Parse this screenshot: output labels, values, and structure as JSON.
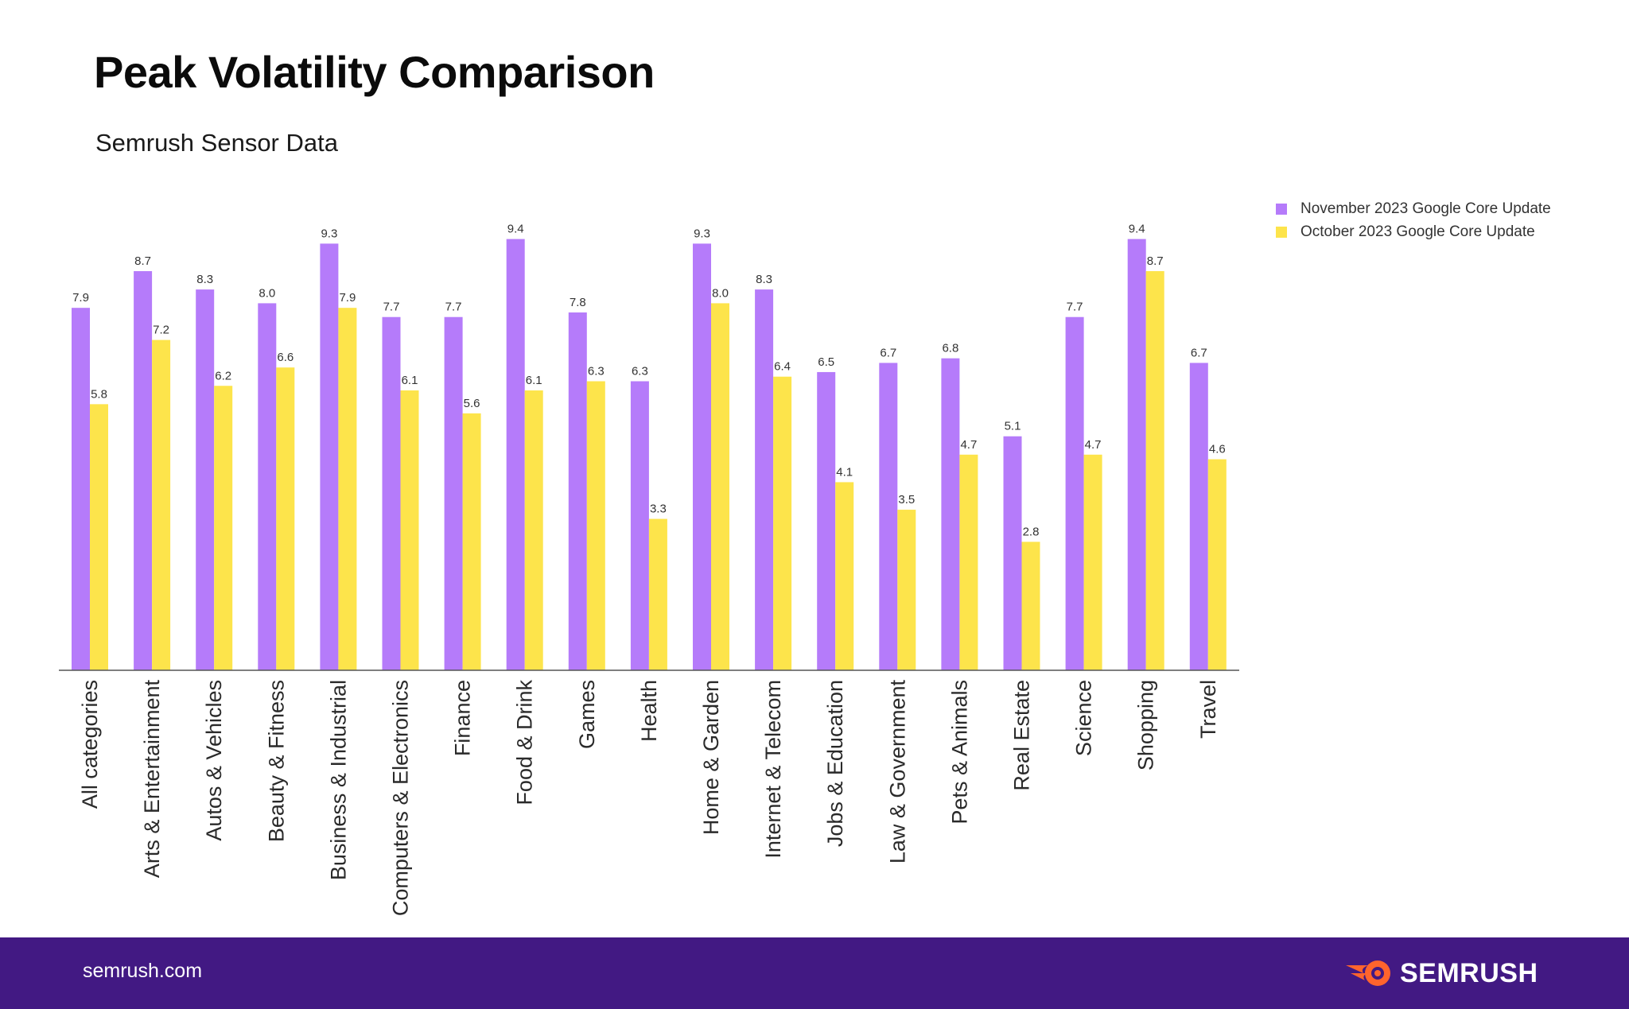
{
  "title": "Peak Volatility Comparison",
  "subtitle": "Semrush Sensor Data",
  "colors": {
    "series1": "#b57bfa",
    "series2": "#fde44b",
    "footer": "#421983",
    "brand_accent": "#ff642d"
  },
  "chart_data": {
    "type": "bar",
    "title": "Peak Volatility Comparison",
    "subtitle": "Semrush Sensor Data",
    "xlabel": "",
    "ylabel": "",
    "ylim": [
      0,
      10
    ],
    "grid": false,
    "legend_position": "top-right",
    "categories": [
      "All categories",
      "Arts & Entertainment",
      "Autos & Vehicles",
      "Beauty & Fitness",
      "Business & Industrial",
      "Computers & Electronics",
      "Finance",
      "Food & Drink",
      "Games",
      "Health",
      "Home & Garden",
      "Internet & Telecom",
      "Jobs & Education",
      "Law & Government",
      "Pets & Animals",
      "Real Estate",
      "Science",
      "Shopping",
      "Travel"
    ],
    "series": [
      {
        "name": "November 2023 Google Core Update",
        "values": [
          7.9,
          8.7,
          8.3,
          8.0,
          9.3,
          7.7,
          7.7,
          9.4,
          7.8,
          6.3,
          9.3,
          8.3,
          6.5,
          6.7,
          6.8,
          5.1,
          7.7,
          9.4,
          6.7
        ]
      },
      {
        "name": "October 2023 Google Core Update",
        "values": [
          5.8,
          7.2,
          6.2,
          6.6,
          7.9,
          6.1,
          5.6,
          6.1,
          6.3,
          3.3,
          8.0,
          6.4,
          4.1,
          3.5,
          4.7,
          2.8,
          4.7,
          8.7,
          4.6
        ]
      }
    ]
  },
  "footer": {
    "url": "semrush.com",
    "brand": "SEMRUSH",
    "brand_icon": "semrush-fireball-icon"
  }
}
